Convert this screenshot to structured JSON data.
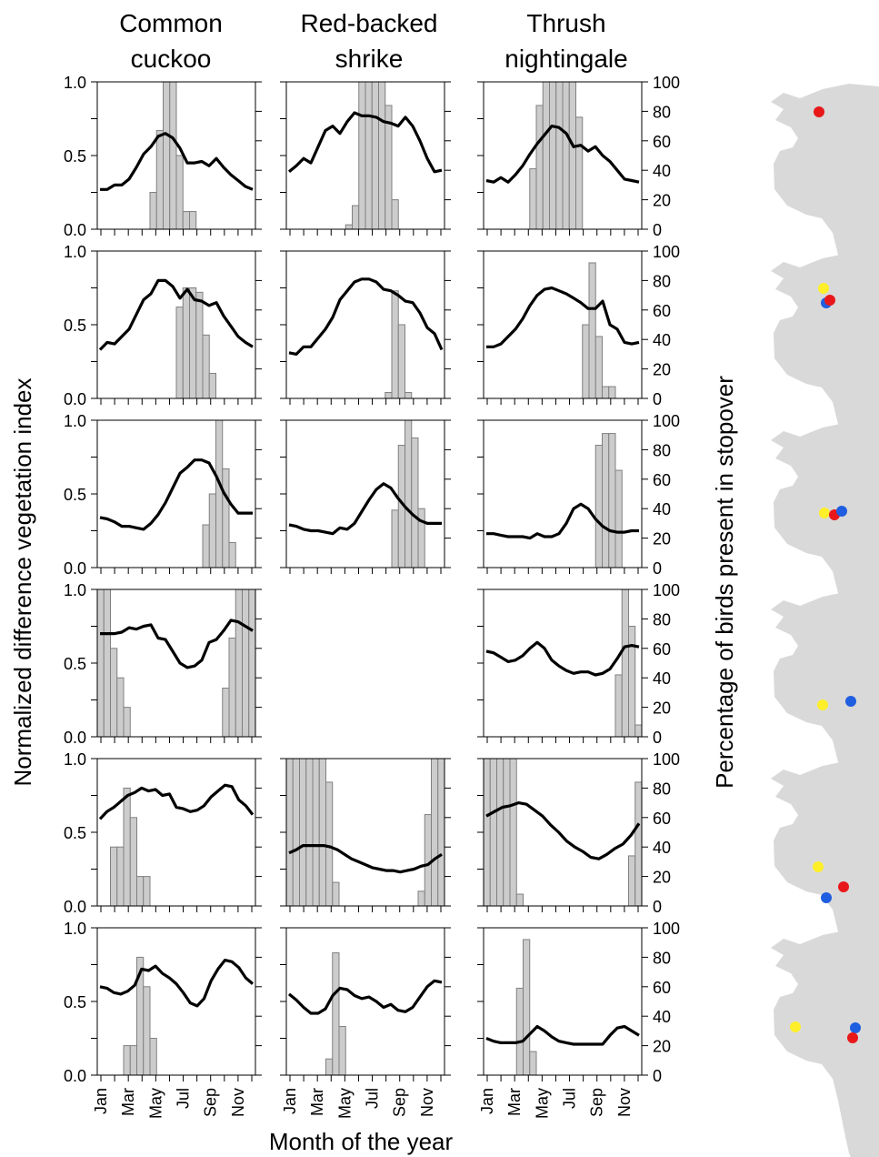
{
  "figure": {
    "column_titles": [
      [
        "Common",
        "cuckoo"
      ],
      [
        "Red-backed",
        "shrike"
      ],
      [
        "Thrush",
        "nightingale"
      ]
    ],
    "ylabel_left": "Normalized difference vegetation index",
    "ylabel_right": "Percentage of birds present in stopover",
    "xlabel": "Month of the year",
    "month_labels": [
      "Jan",
      "Mar",
      "May",
      "Jul",
      "Sep",
      "Nov"
    ],
    "left_ticks": [
      "0.0",
      "0.5",
      "1.0"
    ],
    "right_ticks": [
      "0",
      "20",
      "40",
      "60",
      "80",
      "100"
    ],
    "colors": {
      "line": "#000000",
      "bar_fill": "#cccccc",
      "bar_edge": "#808080",
      "map_land": "#d9d9d9",
      "dot_red": "#e8181a",
      "dot_yellow": "#ffef2a",
      "dot_blue": "#1f5ee0"
    },
    "map_icon": "africa-europe-map-icon"
  },
  "chart_data": [
    {
      "type": "bar+line",
      "row": 1,
      "species": "Common cuckoo",
      "ylim_left": [
        0,
        1
      ],
      "ylim_right": [
        0,
        100
      ],
      "bars": [
        0,
        0,
        0,
        0,
        0,
        0,
        0,
        0,
        25,
        67,
        100,
        100,
        50,
        12,
        12,
        0,
        0,
        0,
        0,
        0,
        0,
        0,
        0,
        0
      ],
      "ndvi": [
        0.27,
        0.27,
        0.3,
        0.3,
        0.34,
        0.42,
        0.51,
        0.56,
        0.63,
        0.65,
        0.62,
        0.55,
        0.45,
        0.45,
        0.46,
        0.43,
        0.48,
        0.42,
        0.37,
        0.33,
        0.29,
        0.27
      ],
      "map_dots": [
        "red"
      ]
    },
    {
      "type": "bar+line",
      "row": 1,
      "species": "Red-backed shrike",
      "ylim_left": [
        0,
        1
      ],
      "ylim_right": [
        0,
        100
      ],
      "bars": [
        0,
        0,
        0,
        0,
        0,
        0,
        0,
        0,
        0,
        3,
        16,
        100,
        100,
        100,
        100,
        84,
        20,
        0,
        0,
        0,
        0,
        0,
        0,
        0
      ],
      "ndvi": [
        0.39,
        0.43,
        0.48,
        0.45,
        0.56,
        0.67,
        0.7,
        0.65,
        0.73,
        0.79,
        0.77,
        0.77,
        0.76,
        0.73,
        0.72,
        0.7,
        0.76,
        0.7,
        0.6,
        0.48,
        0.39,
        0.4
      ],
      "map_dots": []
    },
    {
      "type": "bar+line",
      "row": 1,
      "species": "Thrush nightingale",
      "ylim_left": [
        0,
        1
      ],
      "ylim_right": [
        0,
        100
      ],
      "bars": [
        0,
        0,
        0,
        0,
        0,
        0,
        0,
        41,
        84,
        100,
        100,
        100,
        100,
        100,
        76,
        0,
        0,
        0,
        0,
        0,
        0,
        0,
        0,
        0
      ],
      "ndvi": [
        0.33,
        0.32,
        0.35,
        0.32,
        0.37,
        0.43,
        0.51,
        0.58,
        0.64,
        0.7,
        0.69,
        0.65,
        0.56,
        0.57,
        0.53,
        0.56,
        0.5,
        0.46,
        0.4,
        0.34,
        0.33,
        0.32
      ],
      "map_dots": []
    },
    {
      "type": "bar+line",
      "row": 2,
      "species": "Common cuckoo",
      "ylim_left": [
        0,
        1
      ],
      "ylim_right": [
        0,
        100
      ],
      "bars": [
        0,
        0,
        0,
        0,
        0,
        0,
        0,
        0,
        0,
        0,
        0,
        0,
        62,
        75,
        75,
        72,
        43,
        17,
        0,
        0,
        0,
        0,
        0,
        0
      ],
      "ndvi": [
        0.33,
        0.38,
        0.37,
        0.42,
        0.47,
        0.57,
        0.67,
        0.71,
        0.8,
        0.8,
        0.76,
        0.68,
        0.74,
        0.67,
        0.66,
        0.63,
        0.65,
        0.56,
        0.49,
        0.42,
        0.38,
        0.35
      ],
      "map_dots": [
        "yellow",
        "blue",
        "red"
      ]
    },
    {
      "type": "bar+line",
      "row": 2,
      "species": "Red-backed shrike",
      "ylim_left": [
        0,
        1
      ],
      "ylim_right": [
        0,
        100
      ],
      "bars": [
        0,
        0,
        0,
        0,
        0,
        0,
        0,
        0,
        0,
        0,
        0,
        0,
        0,
        0,
        0,
        4,
        73,
        50,
        4,
        0,
        0,
        0,
        0,
        0
      ],
      "ndvi": [
        0.31,
        0.3,
        0.35,
        0.35,
        0.41,
        0.47,
        0.55,
        0.67,
        0.73,
        0.79,
        0.81,
        0.81,
        0.79,
        0.74,
        0.73,
        0.7,
        0.66,
        0.65,
        0.58,
        0.48,
        0.44,
        0.33
      ],
      "map_dots": []
    },
    {
      "type": "bar+line",
      "row": 2,
      "species": "Thrush nightingale",
      "ylim_left": [
        0,
        1
      ],
      "ylim_right": [
        0,
        100
      ],
      "bars": [
        0,
        0,
        0,
        0,
        0,
        0,
        0,
        0,
        0,
        0,
        0,
        0,
        0,
        0,
        0,
        50,
        92,
        42,
        8,
        8,
        0,
        0,
        0,
        0
      ],
      "ndvi": [
        0.35,
        0.35,
        0.37,
        0.42,
        0.47,
        0.54,
        0.63,
        0.7,
        0.74,
        0.75,
        0.73,
        0.71,
        0.68,
        0.65,
        0.61,
        0.61,
        0.66,
        0.5,
        0.47,
        0.38,
        0.37,
        0.38
      ],
      "map_dots": []
    },
    {
      "type": "bar+line",
      "row": 3,
      "species": "Common cuckoo",
      "ylim_left": [
        0,
        1
      ],
      "ylim_right": [
        0,
        100
      ],
      "bars": [
        0,
        0,
        0,
        0,
        0,
        0,
        0,
        0,
        0,
        0,
        0,
        0,
        0,
        0,
        0,
        0,
        29,
        50,
        100,
        67,
        17,
        0,
        0,
        0
      ],
      "ndvi": [
        0.34,
        0.33,
        0.31,
        0.28,
        0.28,
        0.27,
        0.26,
        0.3,
        0.36,
        0.44,
        0.54,
        0.64,
        0.68,
        0.73,
        0.73,
        0.71,
        0.62,
        0.51,
        0.43,
        0.37,
        0.37,
        0.37
      ],
      "map_dots": [
        "yellow",
        "red",
        "blue"
      ]
    },
    {
      "type": "bar+line",
      "row": 3,
      "species": "Red-backed shrike",
      "ylim_left": [
        0,
        1
      ],
      "ylim_right": [
        0,
        100
      ],
      "bars": [
        0,
        0,
        0,
        0,
        0,
        0,
        0,
        0,
        0,
        0,
        0,
        0,
        0,
        0,
        0,
        0,
        39,
        83,
        100,
        88,
        40,
        0,
        0,
        0
      ],
      "ndvi": [
        0.29,
        0.28,
        0.26,
        0.25,
        0.25,
        0.24,
        0.23,
        0.27,
        0.26,
        0.3,
        0.38,
        0.46,
        0.53,
        0.57,
        0.54,
        0.47,
        0.41,
        0.36,
        0.32,
        0.3,
        0.3,
        0.3
      ],
      "map_dots": []
    },
    {
      "type": "bar+line",
      "row": 3,
      "species": "Thrush nightingale",
      "ylim_left": [
        0,
        1
      ],
      "ylim_right": [
        0,
        100
      ],
      "bars": [
        0,
        0,
        0,
        0,
        0,
        0,
        0,
        0,
        0,
        0,
        0,
        0,
        0,
        0,
        0,
        0,
        0,
        83,
        91,
        91,
        66,
        0,
        0,
        0
      ],
      "ndvi": [
        0.23,
        0.23,
        0.22,
        0.21,
        0.21,
        0.21,
        0.2,
        0.23,
        0.21,
        0.21,
        0.23,
        0.3,
        0.4,
        0.43,
        0.4,
        0.33,
        0.28,
        0.25,
        0.24,
        0.24,
        0.25,
        0.25
      ],
      "map_dots": []
    },
    {
      "type": "bar+line",
      "row": 4,
      "species": "Common cuckoo",
      "ylim_left": [
        0,
        1
      ],
      "ylim_right": [
        0,
        100
      ],
      "bars": [
        100,
        100,
        60,
        40,
        20,
        0,
        0,
        0,
        0,
        0,
        0,
        0,
        0,
        0,
        0,
        0,
        0,
        0,
        0,
        33,
        67,
        100,
        100,
        100
      ],
      "ndvi": [
        0.7,
        0.7,
        0.7,
        0.71,
        0.74,
        0.73,
        0.75,
        0.76,
        0.67,
        0.66,
        0.58,
        0.5,
        0.47,
        0.48,
        0.52,
        0.64,
        0.66,
        0.72,
        0.79,
        0.78,
        0.75,
        0.72
      ],
      "map_dots": [
        "yellow",
        "blue"
      ]
    },
    {
      "type": "bar+line",
      "row": 4,
      "species": "Thrush nightingale",
      "ylim_left": [
        0,
        1
      ],
      "ylim_right": [
        0,
        100
      ],
      "bars": [
        0,
        0,
        0,
        0,
        0,
        0,
        0,
        0,
        0,
        0,
        0,
        0,
        0,
        0,
        0,
        0,
        0,
        0,
        0,
        0,
        42,
        100,
        75,
        8
      ],
      "ndvi": [
        0.58,
        0.57,
        0.54,
        0.51,
        0.52,
        0.55,
        0.6,
        0.64,
        0.6,
        0.52,
        0.48,
        0.45,
        0.43,
        0.44,
        0.44,
        0.42,
        0.43,
        0.46,
        0.53,
        0.61,
        0.62,
        0.61
      ],
      "map_dots": []
    },
    {
      "type": "bar+line",
      "row": 5,
      "species": "Common cuckoo",
      "ylim_left": [
        0,
        1
      ],
      "ylim_right": [
        0,
        100
      ],
      "bars": [
        0,
        0,
        40,
        40,
        80,
        60,
        20,
        20,
        0,
        0,
        0,
        0,
        0,
        0,
        0,
        0,
        0,
        0,
        0,
        0,
        0,
        0,
        0,
        0
      ],
      "ndvi": [
        0.59,
        0.64,
        0.67,
        0.71,
        0.75,
        0.77,
        0.8,
        0.78,
        0.79,
        0.75,
        0.76,
        0.67,
        0.66,
        0.64,
        0.65,
        0.68,
        0.74,
        0.78,
        0.82,
        0.81,
        0.72,
        0.68,
        0.62
      ],
      "map_dots": [
        "yellow",
        "red",
        "blue"
      ]
    },
    {
      "type": "bar+line",
      "row": 5,
      "species": "Red-backed shrike",
      "ylim_left": [
        0,
        1
      ],
      "ylim_right": [
        0,
        100
      ],
      "bars": [
        100,
        100,
        100,
        100,
        100,
        100,
        84,
        16,
        0,
        0,
        0,
        0,
        0,
        0,
        0,
        0,
        0,
        0,
        0,
        0,
        10,
        62,
        100,
        100
      ],
      "ndvi": [
        0.36,
        0.38,
        0.41,
        0.41,
        0.41,
        0.41,
        0.4,
        0.38,
        0.35,
        0.32,
        0.3,
        0.28,
        0.26,
        0.25,
        0.24,
        0.24,
        0.23,
        0.24,
        0.25,
        0.27,
        0.28,
        0.32,
        0.35
      ],
      "map_dots": []
    },
    {
      "type": "bar+line",
      "row": 5,
      "species": "Thrush nightingale",
      "ylim_left": [
        0,
        1
      ],
      "ylim_right": [
        0,
        100
      ],
      "bars": [
        100,
        100,
        100,
        100,
        100,
        8,
        0,
        0,
        0,
        0,
        0,
        0,
        0,
        0,
        0,
        0,
        0,
        0,
        0,
        0,
        0,
        0,
        34,
        84
      ],
      "ndvi": [
        0.61,
        0.64,
        0.67,
        0.68,
        0.7,
        0.69,
        0.65,
        0.61,
        0.55,
        0.5,
        0.44,
        0.4,
        0.37,
        0.33,
        0.32,
        0.35,
        0.39,
        0.42,
        0.48,
        0.56
      ],
      "map_dots": []
    },
    {
      "type": "bar+line",
      "row": 6,
      "species": "Common cuckoo",
      "ylim_left": [
        0,
        1
      ],
      "ylim_right": [
        0,
        100
      ],
      "bars": [
        0,
        0,
        0,
        0,
        20,
        20,
        80,
        60,
        25,
        0,
        0,
        0,
        0,
        0,
        0,
        0,
        0,
        0,
        0,
        0,
        0,
        0,
        0,
        0
      ],
      "ndvi": [
        0.6,
        0.59,
        0.56,
        0.55,
        0.57,
        0.61,
        0.72,
        0.71,
        0.74,
        0.69,
        0.66,
        0.62,
        0.56,
        0.49,
        0.47,
        0.52,
        0.64,
        0.72,
        0.78,
        0.77,
        0.73,
        0.66,
        0.62
      ],
      "map_dots": [
        "yellow",
        "blue",
        "red"
      ]
    },
    {
      "type": "bar+line",
      "row": 6,
      "species": "Red-backed shrike",
      "ylim_left": [
        0,
        1
      ],
      "ylim_right": [
        0,
        100
      ],
      "bars": [
        0,
        0,
        0,
        0,
        0,
        0,
        11,
        83,
        33,
        0,
        0,
        0,
        0,
        0,
        0,
        0,
        0,
        0,
        0,
        0,
        0,
        0,
        0,
        0
      ],
      "ndvi": [
        0.55,
        0.51,
        0.46,
        0.42,
        0.42,
        0.45,
        0.54,
        0.59,
        0.58,
        0.54,
        0.52,
        0.53,
        0.5,
        0.46,
        0.48,
        0.44,
        0.43,
        0.46,
        0.53,
        0.6,
        0.64,
        0.63
      ],
      "map_dots": []
    },
    {
      "type": "bar+line",
      "row": 6,
      "species": "Thrush nightingale",
      "ylim_left": [
        0,
        1
      ],
      "ylim_right": [
        0,
        100
      ],
      "bars": [
        0,
        0,
        0,
        0,
        0,
        59,
        92,
        16,
        0,
        0,
        0,
        0,
        0,
        0,
        0,
        0,
        0,
        0,
        0,
        0,
        0,
        0,
        0,
        0
      ],
      "ndvi": [
        0.25,
        0.23,
        0.22,
        0.22,
        0.22,
        0.23,
        0.28,
        0.33,
        0.3,
        0.26,
        0.23,
        0.22,
        0.21,
        0.21,
        0.21,
        0.21,
        0.21,
        0.27,
        0.32,
        0.33,
        0.3,
        0.27
      ],
      "map_dots": []
    }
  ]
}
